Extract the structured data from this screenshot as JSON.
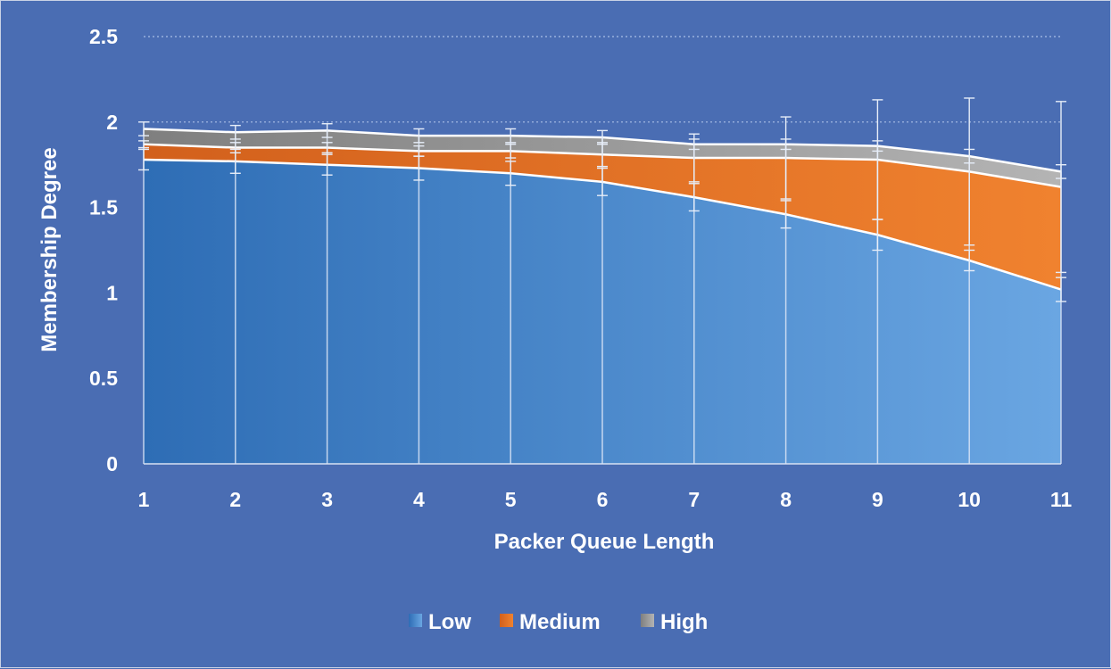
{
  "chart_data": {
    "type": "area",
    "stacked": true,
    "title": "",
    "xlabel": "Packer Queue Length",
    "ylabel": "Membership Degree",
    "categories": [
      "1",
      "2",
      "3",
      "4",
      "5",
      "6",
      "7",
      "8",
      "9",
      "10",
      "11"
    ],
    "ylim": [
      0,
      2.5
    ],
    "yticks": [
      "0",
      "0.5",
      "1",
      "1.5",
      "2",
      "2.5"
    ],
    "grid": "horizontal dotted",
    "legend_position": "bottom",
    "error_bars": true,
    "series": [
      {
        "name": "Low",
        "color": "#4d8fd1",
        "values": [
          1.78,
          1.77,
          1.75,
          1.73,
          1.7,
          1.65,
          1.56,
          1.46,
          1.34,
          1.19,
          1.02
        ],
        "error": [
          0.06,
          0.07,
          0.06,
          0.07,
          0.07,
          0.08,
          0.08,
          0.08,
          0.09,
          0.06,
          0.07
        ]
      },
      {
        "name": "Medium",
        "color": "#ed7d31",
        "values": [
          0.09,
          0.08,
          0.1,
          0.1,
          0.13,
          0.16,
          0.23,
          0.33,
          0.44,
          0.52,
          0.6
        ],
        "error": [
          0.02,
          0.03,
          0.03,
          0.03,
          0.04,
          0.07,
          0.14,
          0.24,
          0.35,
          0.43,
          0.5
        ]
      },
      {
        "name": "High",
        "color": "#a5a5a5",
        "values": [
          0.09,
          0.09,
          0.1,
          0.09,
          0.09,
          0.1,
          0.08,
          0.08,
          0.08,
          0.09,
          0.09
        ],
        "error": [
          0.04,
          0.04,
          0.04,
          0.04,
          0.04,
          0.04,
          0.03,
          0.03,
          0.03,
          0.04,
          0.04
        ]
      }
    ]
  }
}
